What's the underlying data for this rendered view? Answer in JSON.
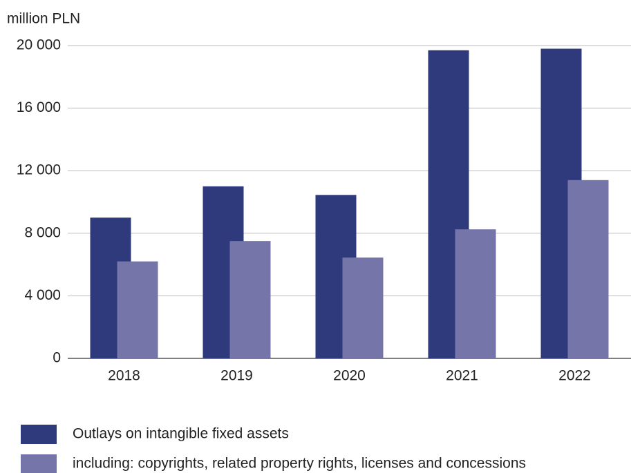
{
  "chart_data": {
    "type": "bar",
    "y_axis_label": "million PLN",
    "categories": [
      "2018",
      "2019",
      "2020",
      "2021",
      "2022"
    ],
    "series": [
      {
        "name": "Outlays on intangible fixed assets",
        "color": "#2e3a7c",
        "values": [
          9000,
          11000,
          10450,
          19700,
          19800
        ]
      },
      {
        "name": "including: copyrights, related property rights, licenses and concessions",
        "color": "#7575aa",
        "values": [
          6200,
          7500,
          6450,
          8250,
          11400
        ]
      }
    ],
    "ylim": [
      0,
      20000
    ],
    "yticks": [
      0,
      {
        "value": 4000,
        "label": "4 000"
      },
      {
        "value": 8000,
        "label": "8 000"
      },
      {
        "value": 12000,
        "label": "12 000"
      },
      {
        "value": 16000,
        "label": "16 000"
      },
      {
        "value": 20000,
        "label": "20 000"
      }
    ],
    "grid": true,
    "legend": "bottom"
  }
}
